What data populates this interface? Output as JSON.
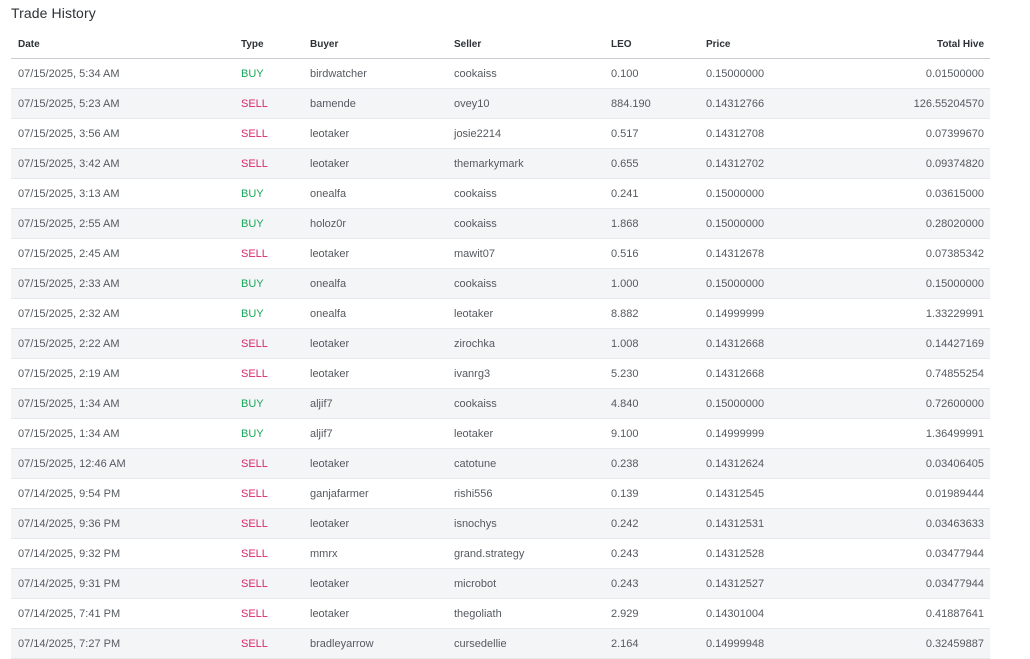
{
  "title": "Trade History",
  "columns": {
    "date": "Date",
    "type": "Type",
    "buyer": "Buyer",
    "seller": "Seller",
    "leo": "LEO",
    "price": "Price",
    "total": "Total Hive"
  },
  "colors": {
    "buy": "#1aa65a",
    "sell": "#d9276c"
  },
  "rows": [
    {
      "date": "07/15/2025, 5:34 AM",
      "type": "BUY",
      "buyer": "birdwatcher",
      "seller": "cookaiss",
      "leo": "0.100",
      "price": "0.15000000",
      "total": "0.01500000"
    },
    {
      "date": "07/15/2025, 5:23 AM",
      "type": "SELL",
      "buyer": "bamende",
      "seller": "ovey10",
      "leo": "884.190",
      "price": "0.14312766",
      "total": "126.55204570"
    },
    {
      "date": "07/15/2025, 3:56 AM",
      "type": "SELL",
      "buyer": "leotaker",
      "seller": "josie2214",
      "leo": "0.517",
      "price": "0.14312708",
      "total": "0.07399670"
    },
    {
      "date": "07/15/2025, 3:42 AM",
      "type": "SELL",
      "buyer": "leotaker",
      "seller": "themarkymark",
      "leo": "0.655",
      "price": "0.14312702",
      "total": "0.09374820"
    },
    {
      "date": "07/15/2025, 3:13 AM",
      "type": "BUY",
      "buyer": "onealfa",
      "seller": "cookaiss",
      "leo": "0.241",
      "price": "0.15000000",
      "total": "0.03615000"
    },
    {
      "date": "07/15/2025, 2:55 AM",
      "type": "BUY",
      "buyer": "holoz0r",
      "seller": "cookaiss",
      "leo": "1.868",
      "price": "0.15000000",
      "total": "0.28020000"
    },
    {
      "date": "07/15/2025, 2:45 AM",
      "type": "SELL",
      "buyer": "leotaker",
      "seller": "mawit07",
      "leo": "0.516",
      "price": "0.14312678",
      "total": "0.07385342"
    },
    {
      "date": "07/15/2025, 2:33 AM",
      "type": "BUY",
      "buyer": "onealfa",
      "seller": "cookaiss",
      "leo": "1.000",
      "price": "0.15000000",
      "total": "0.15000000"
    },
    {
      "date": "07/15/2025, 2:32 AM",
      "type": "BUY",
      "buyer": "onealfa",
      "seller": "leotaker",
      "leo": "8.882",
      "price": "0.14999999",
      "total": "1.33229991"
    },
    {
      "date": "07/15/2025, 2:22 AM",
      "type": "SELL",
      "buyer": "leotaker",
      "seller": "zirochka",
      "leo": "1.008",
      "price": "0.14312668",
      "total": "0.14427169"
    },
    {
      "date": "07/15/2025, 2:19 AM",
      "type": "SELL",
      "buyer": "leotaker",
      "seller": "ivanrg3",
      "leo": "5.230",
      "price": "0.14312668",
      "total": "0.74855254"
    },
    {
      "date": "07/15/2025, 1:34 AM",
      "type": "BUY",
      "buyer": "aljif7",
      "seller": "cookaiss",
      "leo": "4.840",
      "price": "0.15000000",
      "total": "0.72600000"
    },
    {
      "date": "07/15/2025, 1:34 AM",
      "type": "BUY",
      "buyer": "aljif7",
      "seller": "leotaker",
      "leo": "9.100",
      "price": "0.14999999",
      "total": "1.36499991"
    },
    {
      "date": "07/15/2025, 12:46 AM",
      "type": "SELL",
      "buyer": "leotaker",
      "seller": "catotune",
      "leo": "0.238",
      "price": "0.14312624",
      "total": "0.03406405"
    },
    {
      "date": "07/14/2025, 9:54 PM",
      "type": "SELL",
      "buyer": "ganjafarmer",
      "seller": "rishi556",
      "leo": "0.139",
      "price": "0.14312545",
      "total": "0.01989444"
    },
    {
      "date": "07/14/2025, 9:36 PM",
      "type": "SELL",
      "buyer": "leotaker",
      "seller": "isnochys",
      "leo": "0.242",
      "price": "0.14312531",
      "total": "0.03463633"
    },
    {
      "date": "07/14/2025, 9:32 PM",
      "type": "SELL",
      "buyer": "mmrx",
      "seller": "grand.strategy",
      "leo": "0.243",
      "price": "0.14312528",
      "total": "0.03477944"
    },
    {
      "date": "07/14/2025, 9:31 PM",
      "type": "SELL",
      "buyer": "leotaker",
      "seller": "microbot",
      "leo": "0.243",
      "price": "0.14312527",
      "total": "0.03477944"
    },
    {
      "date": "07/14/2025, 7:41 PM",
      "type": "SELL",
      "buyer": "leotaker",
      "seller": "thegoliath",
      "leo": "2.929",
      "price": "0.14301004",
      "total": "0.41887641"
    },
    {
      "date": "07/14/2025, 7:27 PM",
      "type": "SELL",
      "buyer": "bradleyarrow",
      "seller": "cursedellie",
      "leo": "2.164",
      "price": "0.14999948",
      "total": "0.32459887"
    }
  ]
}
